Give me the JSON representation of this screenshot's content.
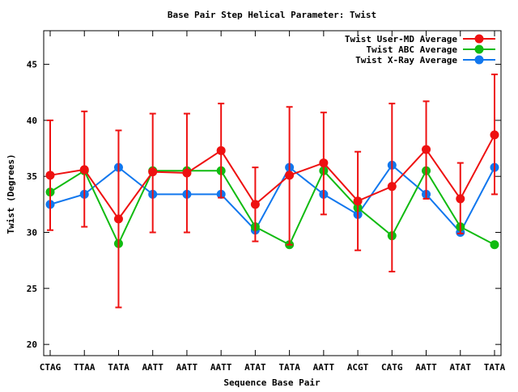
{
  "chart_data": {
    "type": "line",
    "title": "Base Pair Step Helical Parameter: Twist",
    "xlabel": "Sequence Base Pair",
    "ylabel": "Twist (Degrees)",
    "categories": [
      "CTAG",
      "TTAA",
      "TATA",
      "AATT",
      "AATT",
      "AATT",
      "ATAT",
      "TATA",
      "AATT",
      "ACGT",
      "CATG",
      "AATT",
      "ATAT",
      "TATA"
    ],
    "ylim": [
      19,
      48
    ],
    "yticks": [
      20,
      25,
      30,
      35,
      40,
      45
    ],
    "grid": false,
    "legend_position": "top-right",
    "series": [
      {
        "name": "Twist User-MD Average",
        "color": "#ee1111",
        "values": [
          35.1,
          35.6,
          31.2,
          35.4,
          35.3,
          37.3,
          32.5,
          35.1,
          36.2,
          32.8,
          34.1,
          37.4,
          33.0,
          38.7
        ],
        "err_low": [
          30.2,
          30.5,
          23.3,
          30.0,
          30.0,
          33.1,
          29.2,
          28.9,
          31.6,
          28.4,
          26.5,
          33.0,
          29.9,
          33.4
        ],
        "err_high": [
          40.0,
          40.8,
          39.1,
          40.6,
          40.6,
          41.5,
          35.8,
          41.2,
          40.7,
          37.2,
          41.5,
          41.7,
          36.2,
          44.1
        ]
      },
      {
        "name": "Twist ABC Average",
        "color": "#11bb11",
        "values": [
          33.6,
          35.5,
          29.0,
          35.5,
          35.5,
          35.5,
          30.5,
          28.9,
          35.5,
          32.2,
          29.7,
          35.5,
          30.5,
          28.9
        ]
      },
      {
        "name": "Twist X-Ray Average",
        "color": "#1177ee",
        "values": [
          32.5,
          33.4,
          35.8,
          33.4,
          33.4,
          33.4,
          30.2,
          35.8,
          33.4,
          31.6,
          36.0,
          33.4,
          30.0,
          35.8
        ]
      }
    ]
  }
}
